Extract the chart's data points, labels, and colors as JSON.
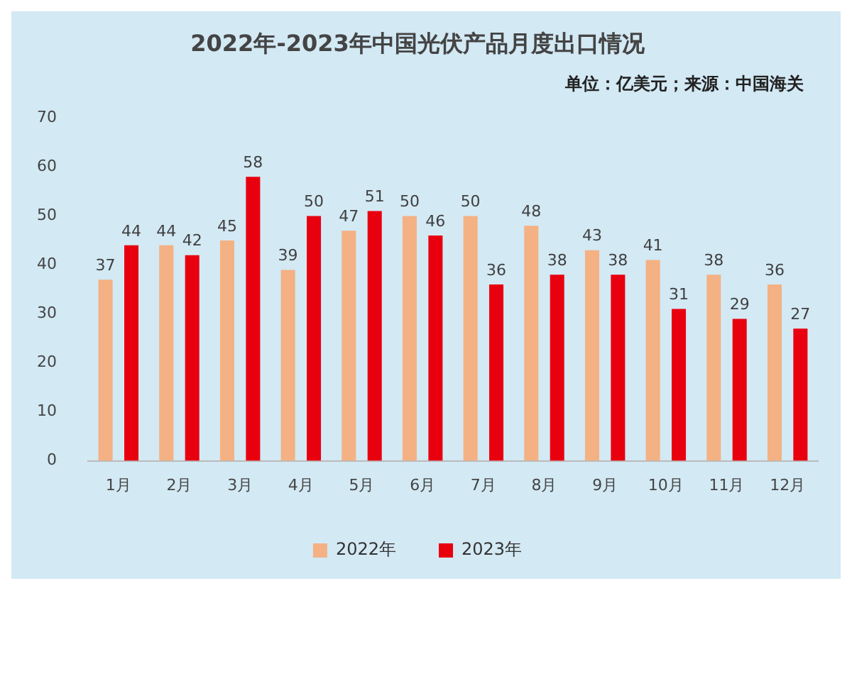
{
  "chart_data": {
    "type": "bar",
    "title": "2022年-2023年中国光伏产品月度出口情况",
    "annotations": [
      "单位：亿美元；来源：中国海关"
    ],
    "categories": [
      "1月",
      "2月",
      "3月",
      "4月",
      "5月",
      "6月",
      "7月",
      "8月",
      "9月",
      "10月",
      "11月",
      "12月"
    ],
    "series": [
      {
        "name": "2022年",
        "color": "#f4b183",
        "values": [
          37,
          44,
          45,
          39,
          47,
          50,
          50,
          48,
          43,
          41,
          38,
          36
        ]
      },
      {
        "name": "2023年",
        "color": "#e8000f",
        "values": [
          44,
          42,
          58,
          50,
          51,
          46,
          36,
          38,
          38,
          31,
          29,
          27
        ]
      }
    ],
    "ylim": [
      0,
      70
    ],
    "yticks": [
      0,
      10,
      20,
      30,
      40,
      50,
      60,
      70
    ],
    "grid": false,
    "legend": "bottom",
    "data_labels": true
  }
}
